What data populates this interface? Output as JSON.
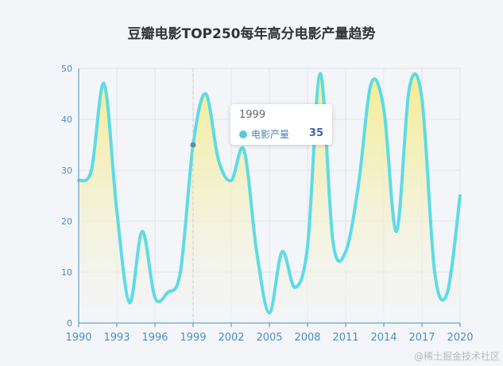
{
  "chart_data": {
    "type": "area",
    "title": "豆瓣电影TOP250每年高分电影产量趋势",
    "x": [
      1990,
      1991,
      1992,
      1993,
      1994,
      1995,
      1996,
      1997,
      1998,
      1999,
      2000,
      2001,
      2002,
      2003,
      2004,
      2005,
      2006,
      2007,
      2008,
      2009,
      2010,
      2011,
      2012,
      2013,
      2014,
      2015,
      2016,
      2017,
      2018,
      2019,
      2020
    ],
    "series": [
      {
        "name": "电影产量",
        "values": [
          28,
          30,
          47,
          22,
          4,
          18,
          5,
          6,
          10,
          35,
          45,
          32,
          28,
          34,
          14,
          2,
          14,
          7,
          15,
          49,
          16,
          14,
          27,
          47,
          42,
          18,
          46,
          44,
          10,
          6,
          25
        ]
      }
    ],
    "x_ticks": [
      "1990",
      "1993",
      "1996",
      "1999",
      "2002",
      "2005",
      "2008",
      "2011",
      "2014",
      "2017",
      "2020"
    ],
    "y_ticks": [
      "0",
      "10",
      "20",
      "30",
      "40",
      "50"
    ],
    "ylim": [
      0,
      50
    ],
    "xlim": [
      1990,
      2020
    ],
    "colors": {
      "line": "#5ddbe6",
      "fill_top": "#f5ec8e",
      "fill_bottom": "#f3f5f8",
      "axis": "#4a90c8",
      "grid": "#dfe5ee"
    },
    "tooltip": {
      "year": "1999",
      "series_name": "电影产量",
      "value": "35"
    }
  },
  "watermark": "@稀土掘金技术社区"
}
